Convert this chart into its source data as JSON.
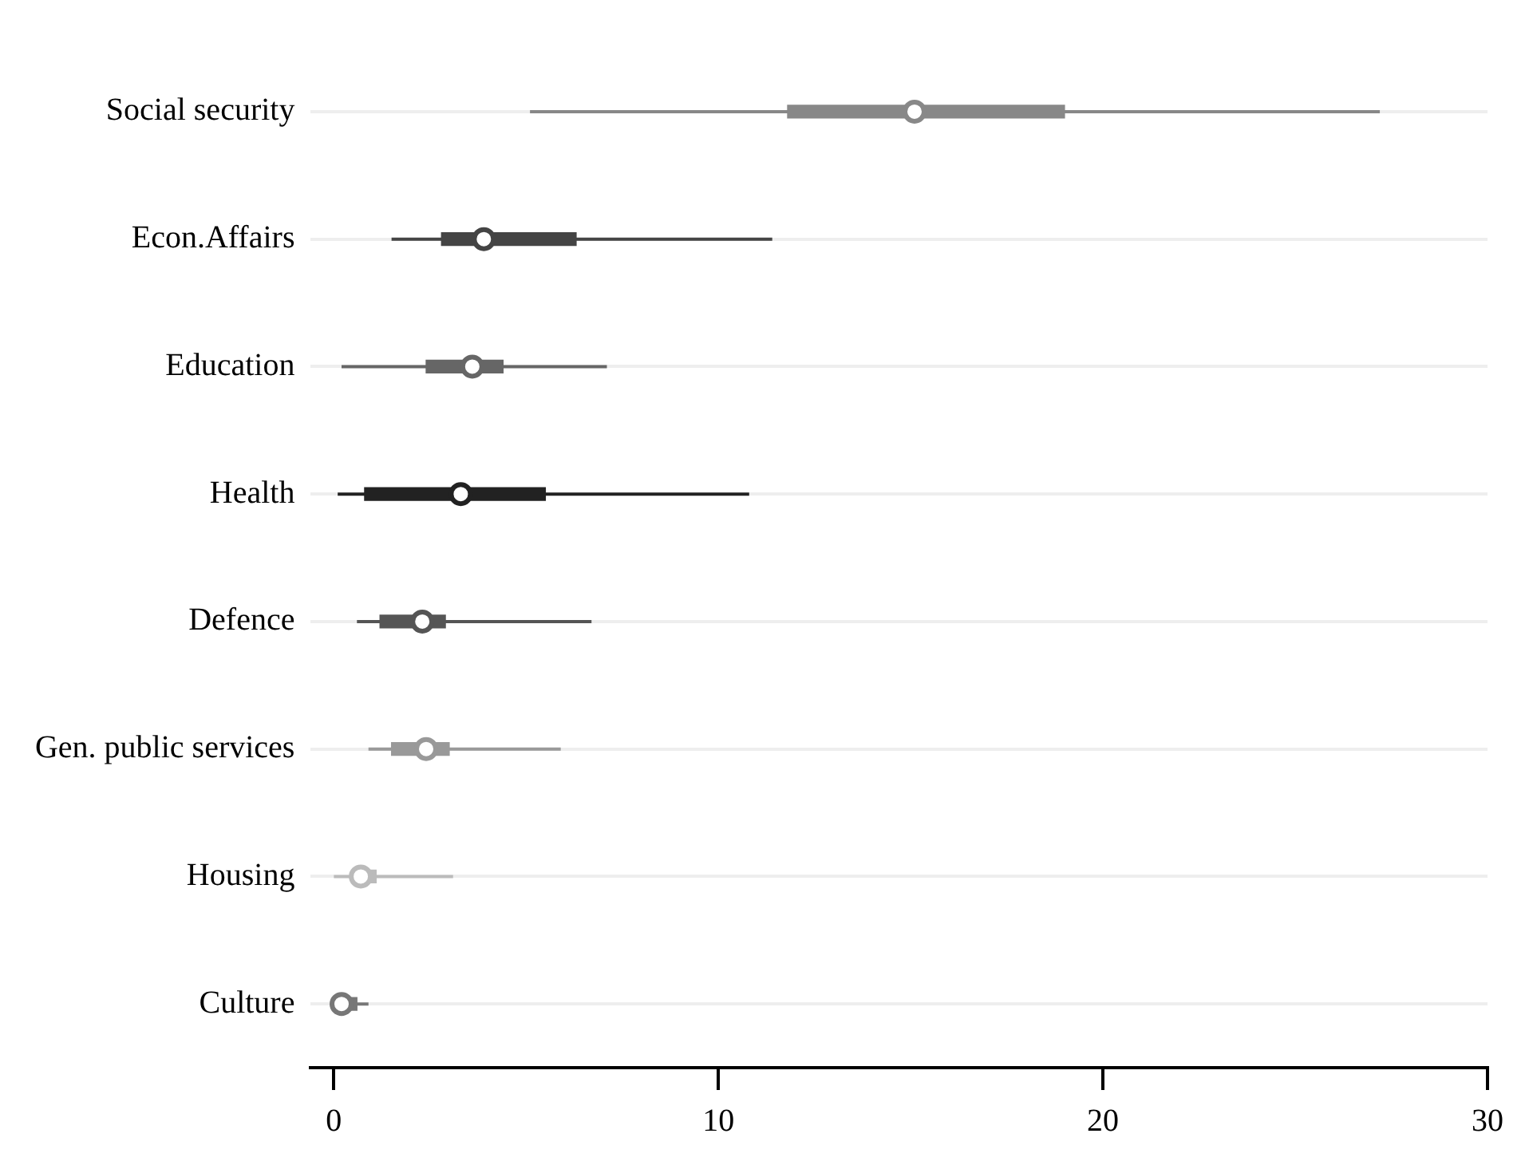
{
  "chart_data": {
    "type": "box",
    "orientation": "horizontal",
    "categories": [
      "Social security",
      "Econ.Affairs",
      "Education",
      "Health",
      "Defence",
      "Gen. public services",
      "Housing",
      "Culture"
    ],
    "boxes": [
      {
        "low": 5.1,
        "q1": 11.8,
        "median": 15.1,
        "q3": 19.0,
        "high": 27.2
      },
      {
        "low": 1.5,
        "q1": 2.8,
        "median": 3.9,
        "q3": 6.3,
        "high": 11.4
      },
      {
        "low": 0.2,
        "q1": 2.4,
        "median": 3.6,
        "q3": 4.4,
        "high": 7.1
      },
      {
        "low": 0.1,
        "q1": 0.8,
        "median": 3.3,
        "q3": 5.5,
        "high": 10.8
      },
      {
        "low": 0.6,
        "q1": 1.2,
        "median": 2.3,
        "q3": 2.9,
        "high": 6.7
      },
      {
        "low": 0.9,
        "q1": 1.5,
        "median": 2.4,
        "q3": 3.0,
        "high": 5.9
      },
      {
        "low": 0.0,
        "q1": 0.5,
        "median": 0.7,
        "q3": 1.1,
        "high": 3.1
      },
      {
        "low": 0.0,
        "q1": 0.05,
        "median": 0.2,
        "q3": 0.6,
        "high": 0.9
      }
    ],
    "colors": [
      "#888888",
      "#444444",
      "#666666",
      "#222222",
      "#555555",
      "#999999",
      "#bbbbbb",
      "#777777"
    ],
    "xlim": [
      -0.6,
      30
    ],
    "xticks": [
      0,
      10,
      20,
      30
    ],
    "grid": "y"
  }
}
